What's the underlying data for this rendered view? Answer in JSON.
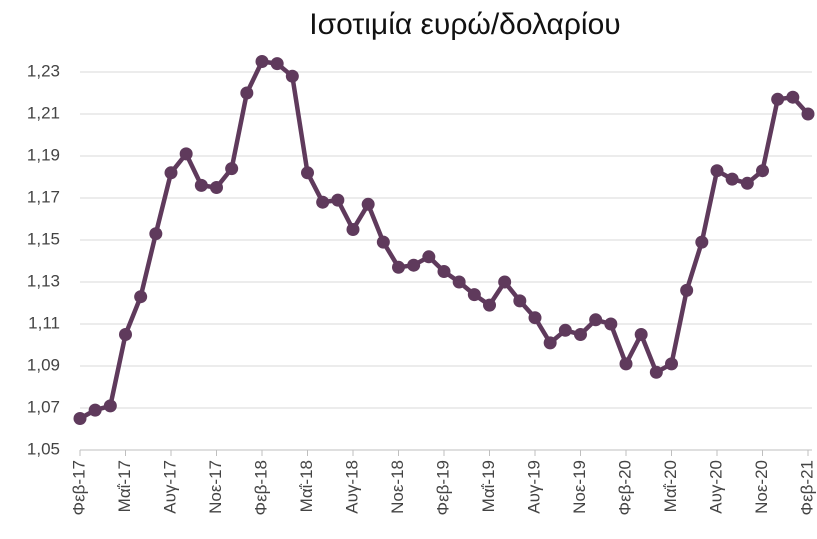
{
  "chart_data": {
    "type": "line",
    "title": "Ισοτιμία ευρώ/δολαρίου",
    "categories": [
      "Φεβ-17",
      null,
      null,
      "Μαΐ-17",
      null,
      null,
      "Αυγ-17",
      null,
      null,
      "Νοε-17",
      null,
      null,
      "Φεβ-18",
      null,
      null,
      "Μαΐ-18",
      null,
      null,
      "Αυγ-18",
      null,
      null,
      "Νοε-18",
      null,
      null,
      "Φεβ-19",
      null,
      null,
      "Μαΐ-19",
      null,
      null,
      "Αυγ-19",
      null,
      null,
      "Νοε-19",
      null,
      null,
      "Φεβ-20",
      null,
      null,
      "Μαΐ-20",
      null,
      null,
      "Αυγ-20",
      null,
      null,
      "Νοε-20",
      null,
      null,
      "Φεβ-21"
    ],
    "series": [
      {
        "color": "#5f3a5c",
        "values": [
          1.065,
          1.069,
          1.071,
          1.105,
          1.123,
          1.153,
          1.182,
          1.191,
          1.176,
          1.175,
          1.184,
          1.22,
          1.235,
          1.234,
          1.228,
          1.182,
          1.168,
          1.169,
          1.155,
          1.167,
          1.149,
          1.137,
          1.138,
          1.142,
          1.135,
          1.13,
          1.124,
          1.119,
          1.13,
          1.121,
          1.113,
          1.101,
          1.107,
          1.105,
          1.112,
          1.11,
          1.091,
          1.105,
          1.087,
          1.091,
          1.126,
          1.149,
          1.183,
          1.179,
          1.177,
          1.183,
          1.217,
          1.218,
          1.21
        ]
      }
    ],
    "ylim": [
      1.05,
      1.24
    ],
    "yticks": [
      {
        "value": 1.05,
        "label": "1,05"
      },
      {
        "value": 1.07,
        "label": "1,07"
      },
      {
        "value": 1.09,
        "label": "1,09"
      },
      {
        "value": 1.11,
        "label": "1,11"
      },
      {
        "value": 1.13,
        "label": "1,13"
      },
      {
        "value": 1.15,
        "label": "1,15"
      },
      {
        "value": 1.17,
        "label": "1,17"
      },
      {
        "value": 1.19,
        "label": "1,19"
      },
      {
        "value": 1.21,
        "label": "1,21"
      },
      {
        "value": 1.23,
        "label": "1,23"
      }
    ],
    "grid": true
  }
}
